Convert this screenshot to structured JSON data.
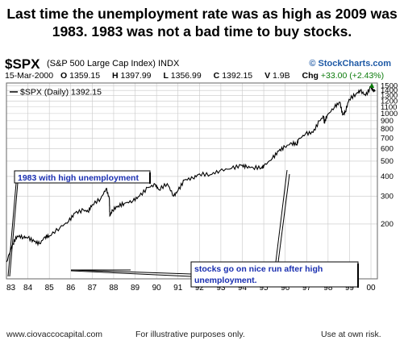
{
  "headline": {
    "line1": "Last time the unemployment rate was as high as 2009 was",
    "line2": "1983.  1983 was not a bad time to buy stocks."
  },
  "header": {
    "symbol": "$SPX",
    "description": "(S&P 500 Large Cap Index) INDX",
    "brand": "© StockCharts.com",
    "date": "15-Mar-2000",
    "open_label": "O",
    "open": "1359.15",
    "high_label": "H",
    "high": "1397.99",
    "low_label": "L",
    "low": "1356.99",
    "close_label": "C",
    "close": "1392.15",
    "volume_label": "V",
    "volume": "1.9B",
    "change_label": "Chg",
    "change": "+33.00 (+2.43%)",
    "up_arrow": "▲"
  },
  "legend": {
    "label": "$SPX (Daily) 1392.15"
  },
  "annotations": {
    "a1983": "1983 with high unemployment",
    "run_line1": "stocks go on nice run after high",
    "run_line2": "unemployment."
  },
  "footer": {
    "site": "www.ciovaccocapital.com",
    "purpose": "For illustrative purposes only.",
    "risk": "Use at own risk."
  },
  "colors": {
    "price_line": "#000000",
    "grid": "#c8c8c8",
    "annotation_text": "#1a2fb0",
    "brand": "#1f5aa6",
    "change_up": "#0a7a0a"
  },
  "chart_data": {
    "type": "line",
    "title": "$SPX (S&P 500 Large Cap Index) INDX",
    "xlabel": "",
    "ylabel": "",
    "scale": "log",
    "ylim": [
      90,
      1560
    ],
    "xlim": [
      1983.0,
      2000.3
    ],
    "grid": true,
    "legend_position": "top-left",
    "x_tick_labels": [
      "83",
      "84",
      "85",
      "86",
      "87",
      "88",
      "89",
      "90",
      "91",
      "92",
      "93",
      "94",
      "95",
      "96",
      "97",
      "98",
      "99",
      "00"
    ],
    "y_tick_labels": [
      "1500",
      "1400",
      "1300",
      "1200",
      "1100",
      "1000",
      "900",
      "800",
      "700",
      "600",
      "500",
      "400",
      "300",
      "200"
    ],
    "y_ticks": [
      1500,
      1400,
      1300,
      1200,
      1100,
      1000,
      900,
      800,
      700,
      600,
      500,
      400,
      300,
      200
    ],
    "series": [
      {
        "name": "$SPX (Daily)",
        "points": [
          [
            1983.0,
            115
          ],
          [
            1983.3,
            150
          ],
          [
            1983.5,
            168
          ],
          [
            1983.8,
            165
          ],
          [
            1984.0,
            164
          ],
          [
            1984.3,
            155
          ],
          [
            1984.55,
            150
          ],
          [
            1984.8,
            166
          ],
          [
            1985.0,
            168
          ],
          [
            1985.5,
            190
          ],
          [
            1985.9,
            208
          ],
          [
            1986.2,
            235
          ],
          [
            1986.6,
            245
          ],
          [
            1986.8,
            240
          ],
          [
            1987.0,
            265
          ],
          [
            1987.4,
            290
          ],
          [
            1987.65,
            335
          ],
          [
            1987.8,
            290
          ],
          [
            1987.82,
            225
          ],
          [
            1987.95,
            245
          ],
          [
            1988.2,
            260
          ],
          [
            1988.5,
            270
          ],
          [
            1988.9,
            280
          ],
          [
            1989.2,
            300
          ],
          [
            1989.6,
            340
          ],
          [
            1989.95,
            355
          ],
          [
            1990.1,
            330
          ],
          [
            1990.5,
            360
          ],
          [
            1990.8,
            300
          ],
          [
            1991.0,
            325
          ],
          [
            1991.3,
            380
          ],
          [
            1991.7,
            390
          ],
          [
            1992.0,
            415
          ],
          [
            1992.5,
            410
          ],
          [
            1992.95,
            435
          ],
          [
            1993.5,
            450
          ],
          [
            1993.95,
            470
          ],
          [
            1994.2,
            460
          ],
          [
            1994.5,
            455
          ],
          [
            1994.9,
            455
          ],
          [
            1995.0,
            465
          ],
          [
            1995.4,
            520
          ],
          [
            1995.7,
            580
          ],
          [
            1995.99,
            615
          ],
          [
            1996.3,
            650
          ],
          [
            1996.55,
            640
          ],
          [
            1996.6,
            680
          ],
          [
            1996.95,
            745
          ],
          [
            1997.3,
            760
          ],
          [
            1997.6,
            900
          ],
          [
            1997.8,
            960
          ],
          [
            1997.82,
            870
          ],
          [
            1997.95,
            970
          ],
          [
            1998.3,
            1100
          ],
          [
            1998.55,
            1180
          ],
          [
            1998.68,
            980
          ],
          [
            1998.8,
            1020
          ],
          [
            1998.98,
            1230
          ],
          [
            1999.3,
            1330
          ],
          [
            1999.5,
            1400
          ],
          [
            1999.75,
            1300
          ],
          [
            1999.99,
            1469
          ],
          [
            2000.1,
            1400
          ],
          [
            2000.21,
            1392
          ]
        ]
      }
    ]
  }
}
